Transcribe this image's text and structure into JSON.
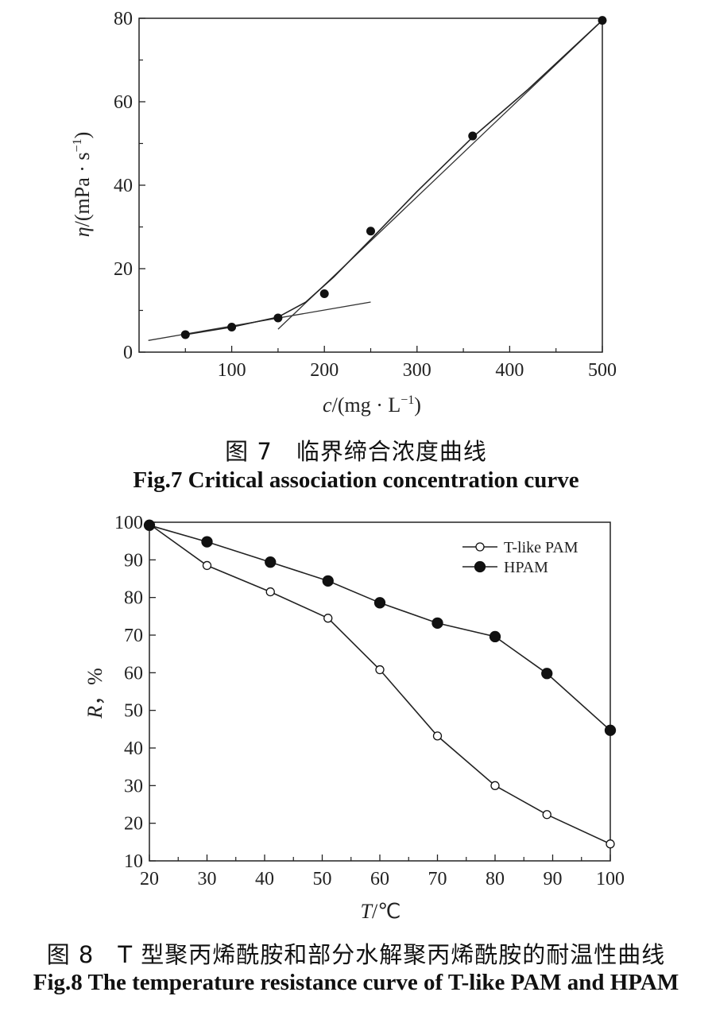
{
  "figures": [
    {
      "caption_cn": "图 7　临界缔合浓度曲线",
      "caption_en": "Fig.7 Critical association concentration curve"
    },
    {
      "caption_cn": "图 8　T 型聚丙烯酰胺和部分水解聚丙烯酰胺的耐温性曲线",
      "caption_en": "Fig.8 The temperature resistance curve of T-like PAM and HPAM"
    }
  ],
  "chart_data": [
    {
      "type": "scatter",
      "title": "",
      "xlabel": "c/(mg · L⁻¹)",
      "ylabel": "η/(mPa · s⁻¹)",
      "xlim": [
        0,
        500
      ],
      "ylim": [
        0,
        80
      ],
      "xticks": [
        100,
        200,
        300,
        400,
        500
      ],
      "yticks": [
        0,
        20,
        40,
        60,
        80
      ],
      "grid": false,
      "series": [
        {
          "x": [
            50,
            100,
            150,
            200,
            250,
            360,
            500
          ],
          "y": [
            4.2,
            6.0,
            8.2,
            14.0,
            29.0,
            51.8,
            79.5
          ]
        }
      ],
      "fit_lines": [
        {
          "x": [
            10,
            250
          ],
          "y": [
            2.8,
            12.0
          ]
        },
        {
          "x": [
            150,
            500
          ],
          "y": [
            5.5,
            79.5
          ]
        }
      ],
      "curve": {
        "x": [
          50,
          100,
          150,
          180,
          210,
          250,
          300,
          360,
          420,
          500
        ],
        "y": [
          4.2,
          6.0,
          8.4,
          12.0,
          18.0,
          27.0,
          38.5,
          51.5,
          63.0,
          79.5
        ]
      }
    },
    {
      "type": "line",
      "title": "",
      "xlabel": "T/℃",
      "ylabel": "R，%",
      "xlim": [
        20,
        100
      ],
      "ylim": [
        10,
        100
      ],
      "xticks": [
        20,
        30,
        40,
        50,
        60,
        70,
        80,
        90,
        100
      ],
      "yticks": [
        10,
        20,
        30,
        40,
        50,
        60,
        70,
        80,
        90,
        100
      ],
      "grid": false,
      "legend_position": "top-right",
      "series": [
        {
          "name": "T-like PAM",
          "marker": "open-circle",
          "x": [
            20,
            30,
            41,
            51,
            60,
            70,
            80,
            89,
            100
          ],
          "y": [
            99.5,
            88.5,
            81.5,
            74.5,
            60.8,
            43.2,
            30.0,
            22.3,
            14.5
          ]
        },
        {
          "name": "HPAM",
          "marker": "filled-circle",
          "x": [
            20,
            30,
            41,
            51,
            60,
            70,
            80,
            89,
            100
          ],
          "y": [
            99.2,
            94.8,
            89.4,
            84.4,
            78.6,
            73.2,
            69.6,
            59.8,
            44.7
          ]
        }
      ]
    }
  ]
}
